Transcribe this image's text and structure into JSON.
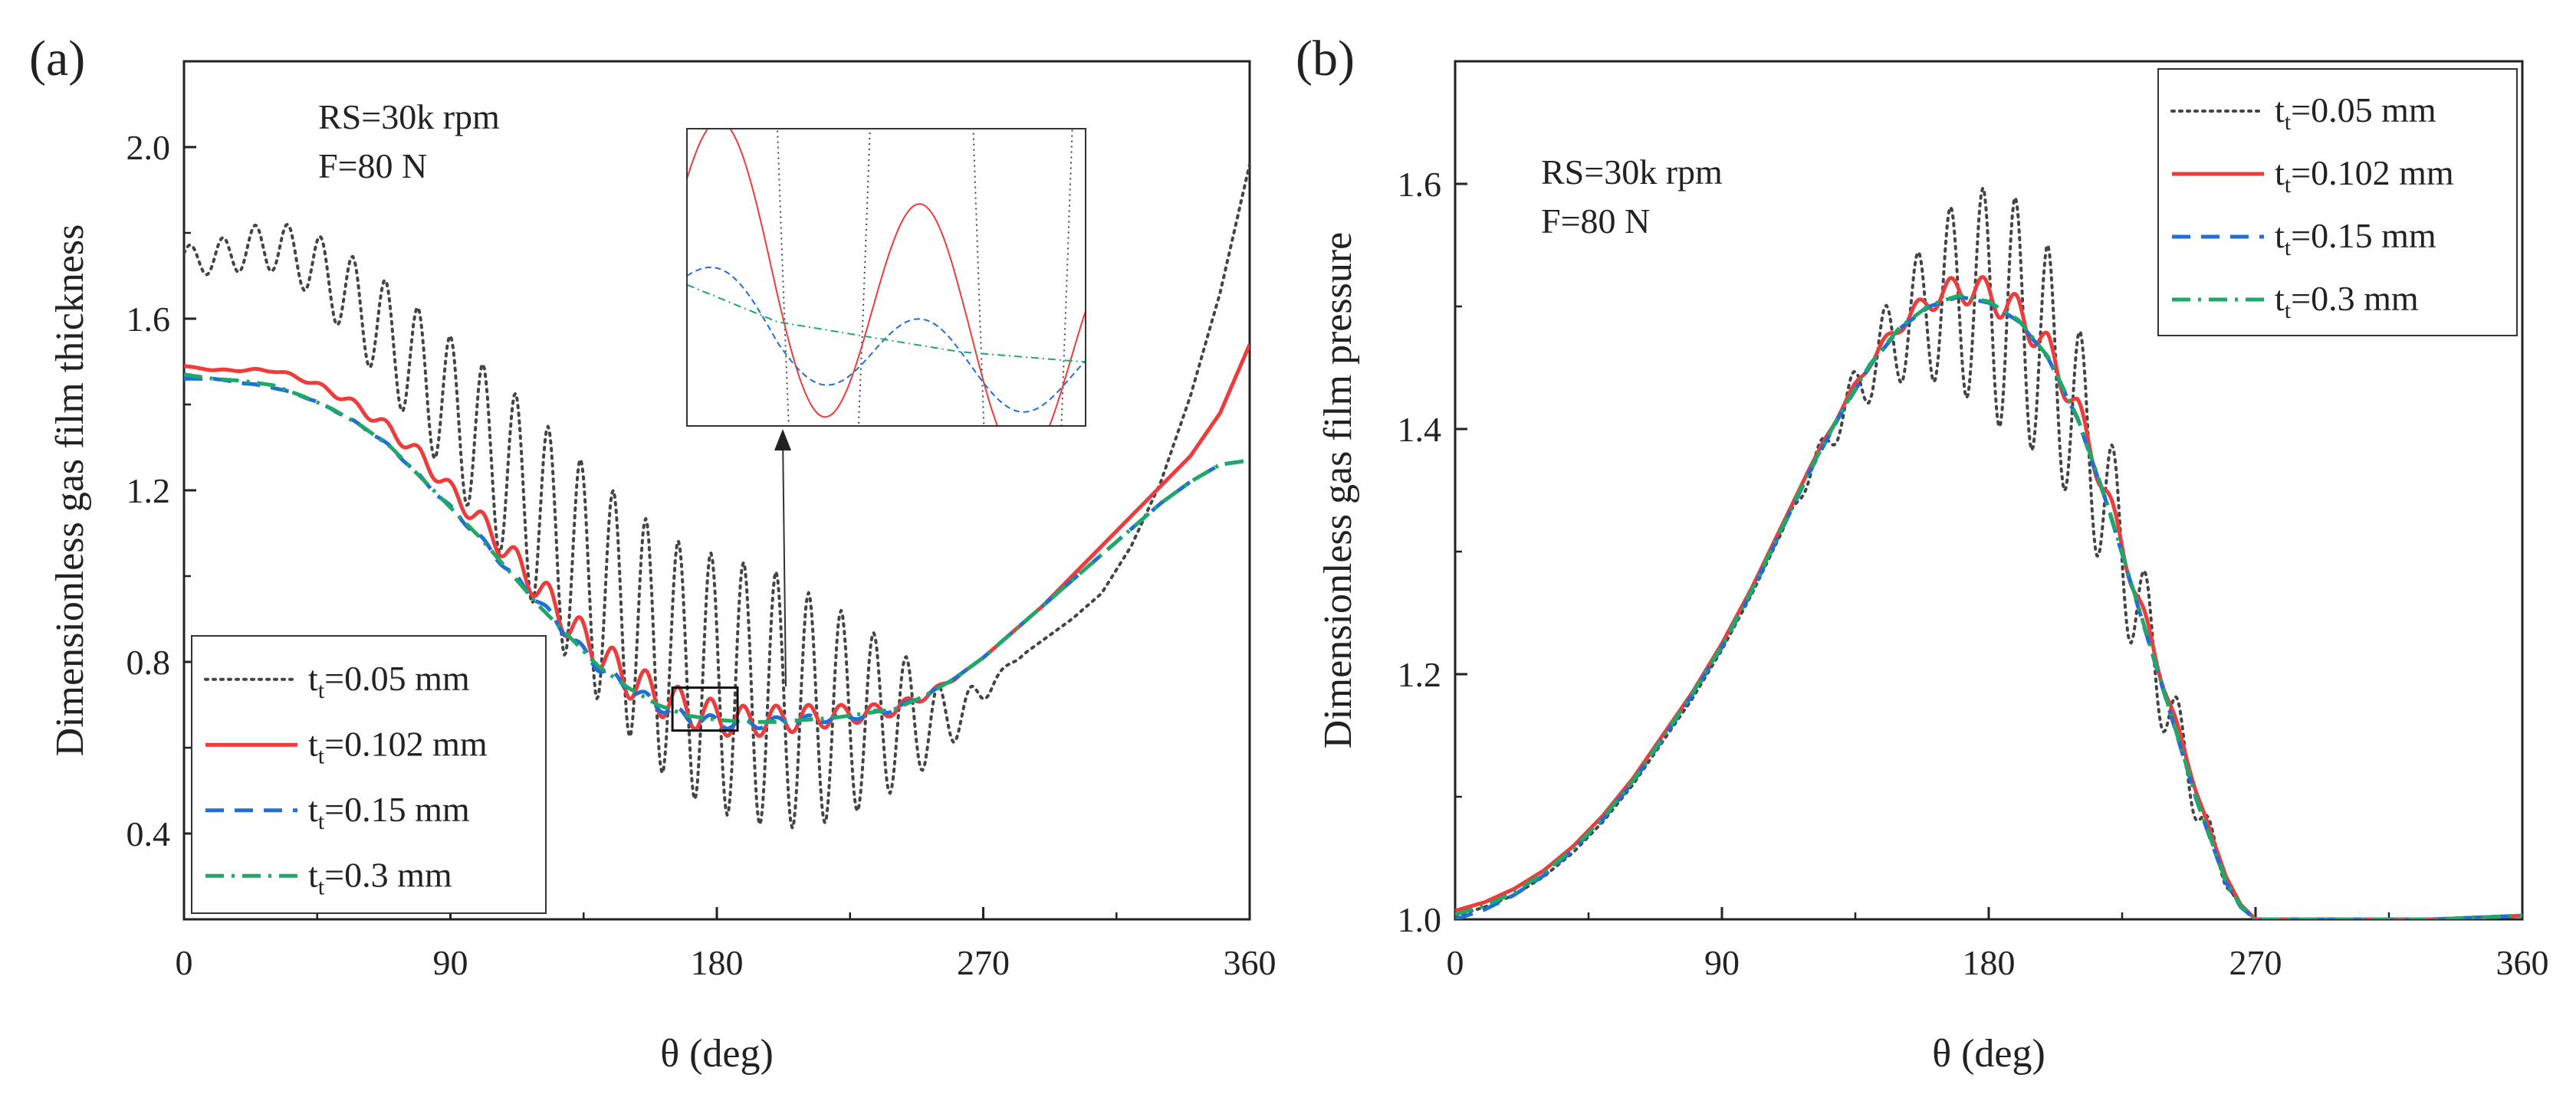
{
  "chart_data": [
    {
      "panel_label": "(a)",
      "type": "line",
      "title": "",
      "xlabel": "θ (deg)",
      "ylabel": "Dimensionless gas film thickness",
      "xlim": [
        0,
        360
      ],
      "ylim": [
        0.2,
        2.2
      ],
      "xticks": [
        0,
        90,
        180,
        270,
        360
      ],
      "xtick_labels": [
        "0",
        "90",
        "180",
        "270",
        "360"
      ],
      "yticks": [
        0.4,
        0.8,
        1.2,
        1.6,
        2.0
      ],
      "ytick_labels": [
        "0.4",
        "0.8",
        "1.2",
        "1.6",
        "2.0"
      ],
      "annotations": [
        "RS=30k rpm",
        "F=80 N"
      ],
      "legend_position": "bottom-left",
      "inset": {
        "zoom_x_range": [
          165,
          187
        ],
        "zoom_y_range": [
          0.64,
          0.74
        ],
        "description": "zoomed view of the oscillations near θ = 180"
      },
      "series": [
        {
          "name": "t_t=0.05 mm",
          "label_main": "t",
          "label_sub": "t",
          "label_rest": "=0.05 mm",
          "color": "#444444",
          "style": "dotted",
          "x": [
            0,
            10,
            20,
            30,
            40,
            50,
            60,
            70,
            80,
            90,
            100,
            110,
            120,
            130,
            140,
            150,
            160,
            170,
            180,
            190,
            200,
            210,
            220,
            230,
            240,
            250,
            260,
            270,
            280,
            290,
            300,
            310,
            320,
            330,
            340,
            350,
            360
          ],
          "y": [
            1.74,
            1.74,
            1.76,
            1.77,
            1.74,
            1.69,
            1.62,
            1.55,
            1.47,
            1.39,
            1.31,
            1.23,
            1.14,
            1.05,
            0.97,
            0.9,
            0.83,
            0.78,
            0.75,
            0.73,
            0.71,
            0.69,
            0.68,
            0.67,
            0.67,
            0.66,
            0.67,
            0.73,
            0.8,
            0.85,
            0.9,
            0.96,
            1.07,
            1.22,
            1.42,
            1.66,
            1.96
          ],
          "oscillation": {
            "amplitude": [
              0.03,
              0.07,
              0.17,
              0.25,
              0.28,
              0.3,
              0.3,
              0.25,
              0.17,
              0.08,
              0.04,
              0.01,
              0.0
            ],
            "amplitude_x": [
              0,
              40,
              90,
              130,
              160,
              180,
              200,
              220,
              240,
              255,
              265,
              275,
              285
            ],
            "period": 11
          }
        },
        {
          "name": "t_t=0.102 mm",
          "label_main": "t",
          "label_sub": "t",
          "label_rest": "=0.102 mm",
          "color": "#ee3b3b",
          "style": "solid",
          "x": [
            0,
            10,
            20,
            30,
            40,
            50,
            60,
            70,
            80,
            90,
            100,
            110,
            120,
            130,
            140,
            150,
            160,
            170,
            180,
            190,
            200,
            210,
            220,
            230,
            240,
            250,
            260,
            270,
            280,
            290,
            300,
            310,
            320,
            330,
            340,
            350,
            360
          ],
          "y": [
            1.49,
            1.48,
            1.48,
            1.48,
            1.46,
            1.43,
            1.39,
            1.34,
            1.28,
            1.2,
            1.13,
            1.05,
            0.97,
            0.89,
            0.82,
            0.76,
            0.72,
            0.69,
            0.67,
            0.66,
            0.665,
            0.67,
            0.675,
            0.68,
            0.69,
            0.72,
            0.76,
            0.81,
            0.87,
            0.93,
            1.0,
            1.07,
            1.14,
            1.21,
            1.28,
            1.38,
            1.54
          ],
          "oscillation": {
            "amplitude": [
              0.0,
              0.005,
              0.02,
              0.04,
              0.045,
              0.04,
              0.03,
              0.015,
              0.0
            ],
            "amplitude_x": [
              0,
              40,
              90,
              130,
              160,
              180,
              210,
              240,
              265
            ],
            "period": 11
          }
        },
        {
          "name": "t_t=0.15 mm",
          "label_main": "t",
          "label_sub": "t",
          "label_rest": "=0.15 mm",
          "color": "#1f6fd6",
          "style": "dashed",
          "x": [
            0,
            10,
            20,
            30,
            40,
            50,
            60,
            70,
            80,
            90,
            100,
            110,
            120,
            130,
            140,
            150,
            160,
            170,
            180,
            190,
            200,
            210,
            220,
            230,
            240,
            250,
            260,
            270,
            280,
            290,
            300,
            310,
            320,
            330,
            340,
            350,
            360
          ],
          "y": [
            1.46,
            1.46,
            1.45,
            1.44,
            1.42,
            1.39,
            1.35,
            1.3,
            1.23,
            1.16,
            1.09,
            1.01,
            0.94,
            0.86,
            0.79,
            0.74,
            0.7,
            0.67,
            0.66,
            0.655,
            0.66,
            0.665,
            0.67,
            0.675,
            0.69,
            0.72,
            0.76,
            0.81,
            0.87,
            0.93,
            0.99,
            1.05,
            1.11,
            1.17,
            1.22,
            1.26,
            1.27
          ],
          "oscillation": {
            "amplitude": [
              0.0,
              0.003,
              0.012,
              0.014,
              0.01,
              0.005,
              0.0
            ],
            "amplitude_x": [
              0,
              80,
              140,
              180,
              210,
              240,
              260
            ],
            "period": 11
          }
        },
        {
          "name": "t_t=0.3 mm",
          "label_main": "t",
          "label_sub": "t",
          "label_rest": "=0.3 mm",
          "color": "#20a86a",
          "style": "dashdot",
          "x": [
            0,
            10,
            20,
            30,
            40,
            50,
            60,
            70,
            80,
            90,
            100,
            110,
            120,
            130,
            140,
            150,
            160,
            170,
            180,
            190,
            200,
            210,
            220,
            230,
            240,
            250,
            260,
            270,
            280,
            290,
            300,
            310,
            320,
            330,
            340,
            350,
            360
          ],
          "y": [
            1.47,
            1.46,
            1.455,
            1.445,
            1.42,
            1.39,
            1.35,
            1.3,
            1.23,
            1.16,
            1.09,
            1.01,
            0.93,
            0.86,
            0.79,
            0.74,
            0.7,
            0.675,
            0.665,
            0.66,
            0.66,
            0.665,
            0.67,
            0.68,
            0.69,
            0.72,
            0.76,
            0.81,
            0.87,
            0.93,
            0.99,
            1.05,
            1.11,
            1.17,
            1.22,
            1.26,
            1.27
          ]
        }
      ]
    },
    {
      "panel_label": "(b)",
      "type": "line",
      "title": "",
      "xlabel": "θ (deg)",
      "ylabel": "Dimensionless gas film pressure",
      "xlim": [
        0,
        360
      ],
      "ylim": [
        1.0,
        1.7
      ],
      "xticks": [
        0,
        90,
        180,
        270,
        360
      ],
      "xtick_labels": [
        "0",
        "90",
        "180",
        "270",
        "360"
      ],
      "yticks": [
        1.0,
        1.2,
        1.4,
        1.6
      ],
      "ytick_labels": [
        "1.0",
        "1.2",
        "1.4",
        "1.6"
      ],
      "annotations": [
        "RS=30k rpm",
        "F=80 N"
      ],
      "legend_position": "top-right",
      "series": [
        {
          "name": "t_t=0.05 mm",
          "label_main": "t",
          "label_sub": "t",
          "label_rest": "=0.05 mm",
          "color": "#444444",
          "style": "dotted",
          "x": [
            0,
            10,
            20,
            30,
            40,
            50,
            60,
            70,
            80,
            90,
            100,
            110,
            120,
            130,
            140,
            150,
            160,
            170,
            180,
            190,
            200,
            210,
            220,
            230,
            240,
            250,
            260,
            265,
            270,
            280,
            300,
            330,
            360
          ],
          "y": [
            1.003,
            1.01,
            1.02,
            1.035,
            1.055,
            1.08,
            1.11,
            1.145,
            1.18,
            1.22,
            1.265,
            1.315,
            1.365,
            1.41,
            1.45,
            1.48,
            1.5,
            1.51,
            1.505,
            1.49,
            1.46,
            1.41,
            1.34,
            1.26,
            1.18,
            1.1,
            1.03,
            1.01,
            1.0,
            1.0,
            1.0,
            1.0,
            1.003
          ],
          "oscillation": {
            "amplitude": [
              0.0,
              0.0,
              0.02,
              0.05,
              0.08,
              0.1,
              0.09,
              0.07,
              0.05,
              0.02,
              0.0
            ],
            "amplitude_x": [
              0,
              110,
              135,
              155,
              170,
              185,
              200,
              215,
              230,
              250,
              262
            ],
            "period": 11
          }
        },
        {
          "name": "t_t=0.102 mm",
          "label_main": "t",
          "label_sub": "t",
          "label_rest": "=0.102 mm",
          "color": "#ee3b3b",
          "style": "solid",
          "x": [
            0,
            10,
            20,
            30,
            40,
            50,
            60,
            70,
            80,
            90,
            100,
            110,
            120,
            130,
            140,
            150,
            160,
            170,
            180,
            190,
            200,
            210,
            220,
            230,
            240,
            250,
            260,
            265,
            270,
            280,
            300,
            330,
            360
          ],
          "y": [
            1.007,
            1.014,
            1.025,
            1.04,
            1.06,
            1.085,
            1.115,
            1.15,
            1.185,
            1.225,
            1.27,
            1.32,
            1.37,
            1.415,
            1.455,
            1.485,
            1.505,
            1.515,
            1.51,
            1.495,
            1.465,
            1.415,
            1.345,
            1.265,
            1.185,
            1.105,
            1.035,
            1.012,
            1.0,
            1.0,
            1.0,
            1.0,
            1.003
          ],
          "oscillation": {
            "amplitude": [
              0.0,
              0.0,
              0.006,
              0.012,
              0.014,
              0.012,
              0.008,
              0.0
            ],
            "amplitude_x": [
              0,
              120,
              150,
              170,
              185,
              205,
              230,
              255
            ],
            "period": 11
          }
        },
        {
          "name": "t_t=0.15 mm",
          "label_main": "t",
          "label_sub": "t",
          "label_rest": "=0.15 mm",
          "color": "#1f6fd6",
          "style": "dashed",
          "x": [
            0,
            10,
            20,
            30,
            40,
            50,
            60,
            70,
            80,
            90,
            100,
            110,
            120,
            130,
            140,
            150,
            160,
            170,
            180,
            190,
            200,
            210,
            220,
            230,
            240,
            250,
            260,
            265,
            270,
            280,
            300,
            330,
            360
          ],
          "y": [
            1.0,
            1.008,
            1.02,
            1.036,
            1.057,
            1.082,
            1.112,
            1.147,
            1.183,
            1.222,
            1.267,
            1.317,
            1.367,
            1.412,
            1.452,
            1.482,
            1.5,
            1.508,
            1.503,
            1.488,
            1.458,
            1.408,
            1.338,
            1.258,
            1.178,
            1.098,
            1.03,
            1.01,
            1.0,
            1.0,
            1.0,
            1.0,
            1.003
          ]
        },
        {
          "name": "t_t=0.3 mm",
          "label_main": "t",
          "label_sub": "t",
          "label_rest": "=0.3 mm",
          "color": "#20a86a",
          "style": "dashdot",
          "x": [
            0,
            10,
            20,
            30,
            40,
            50,
            60,
            70,
            80,
            90,
            100,
            110,
            120,
            130,
            140,
            150,
            160,
            170,
            180,
            190,
            200,
            210,
            220,
            230,
            240,
            250,
            260,
            265,
            270,
            280,
            300,
            330,
            360
          ],
          "y": [
            1.004,
            1.011,
            1.022,
            1.038,
            1.058,
            1.083,
            1.113,
            1.148,
            1.184,
            1.223,
            1.268,
            1.318,
            1.368,
            1.413,
            1.453,
            1.483,
            1.501,
            1.509,
            1.504,
            1.489,
            1.459,
            1.409,
            1.339,
            1.259,
            1.179,
            1.099,
            1.031,
            1.011,
            1.0,
            1.0,
            1.0,
            1.0,
            1.003
          ]
        }
      ]
    }
  ]
}
